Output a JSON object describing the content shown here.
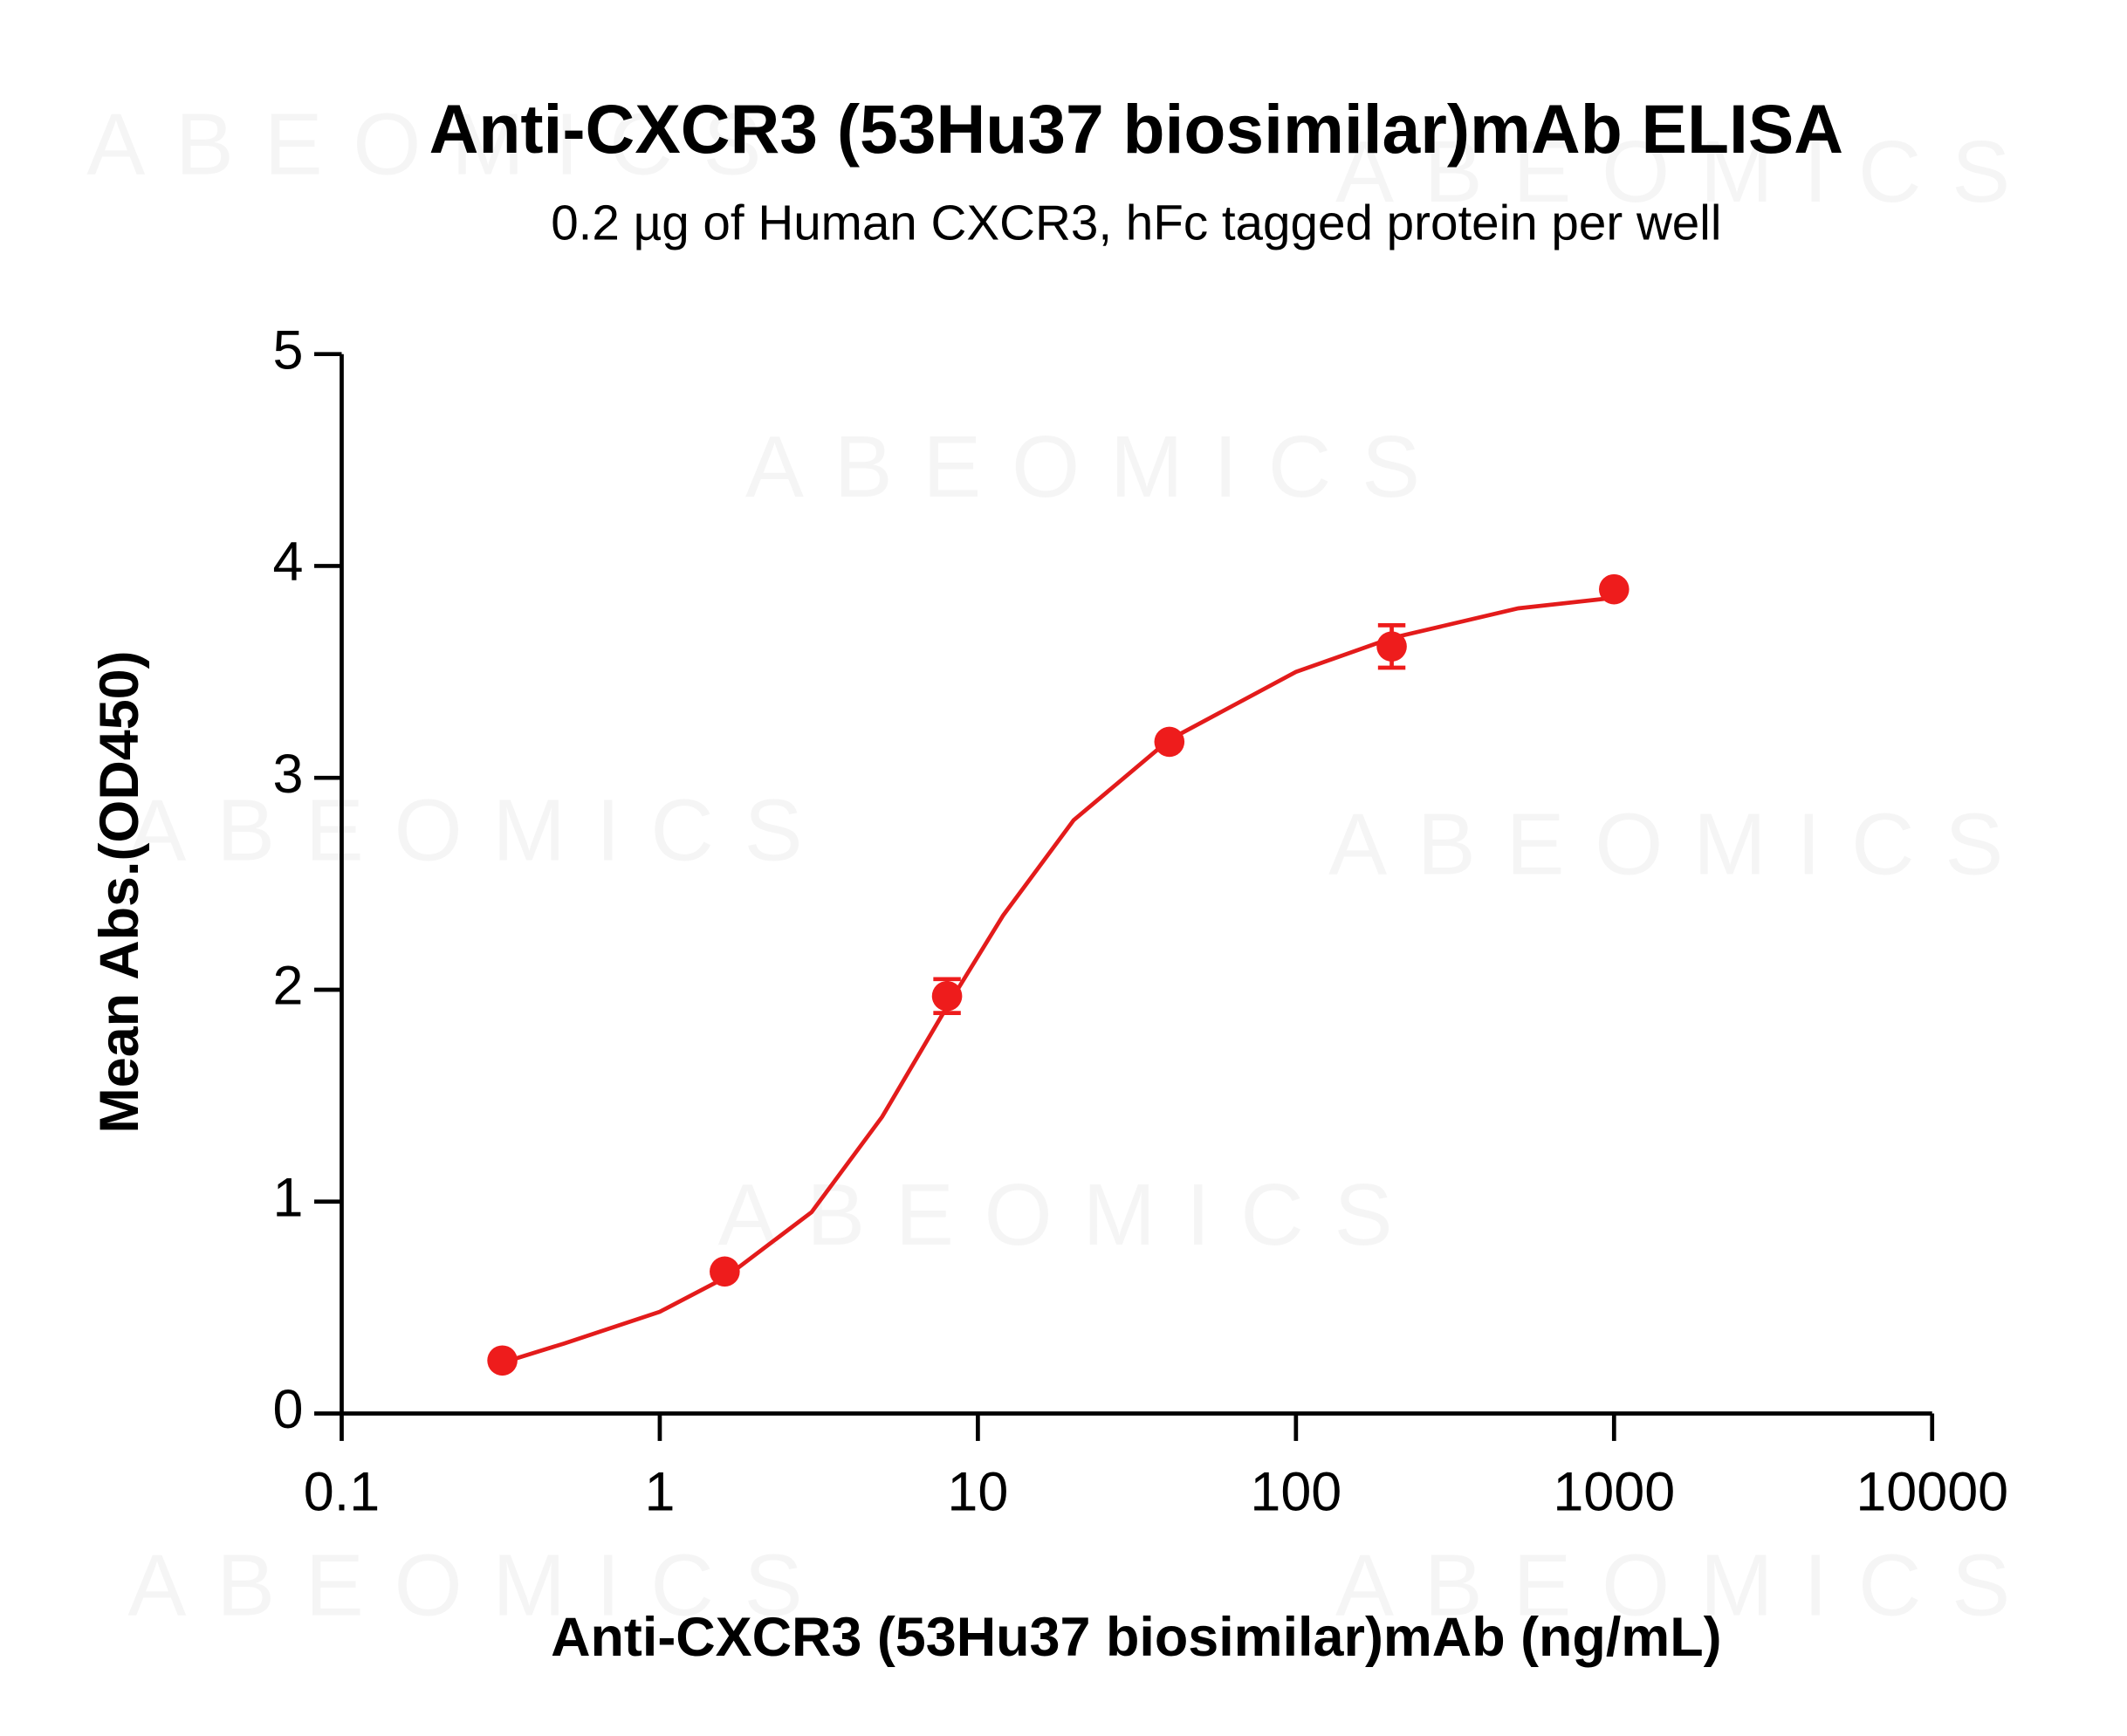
{
  "chart_data": {
    "type": "scatter",
    "title": "Anti-CXCR3 (53Hu37 biosimilar)mAb ELISA",
    "subtitle": "0.2 µg of Human CXCR3, hFc tagged protein per well",
    "xlabel": "Anti-CXCR3 (53Hu37 biosimilar)mAb (ng/mL)",
    "ylabel": "Mean Abs.(OD450)",
    "watermark": "ABEOMICS",
    "x": [
      0.32,
      1.6,
      8,
      40,
      200,
      1000
    ],
    "series": [
      {
        "color": "#ee1c1c",
        "values": [
          0.25,
          0.67,
          1.97,
          3.17,
          3.62,
          3.89
        ],
        "errors": [
          0.02,
          0.02,
          0.08,
          0.02,
          0.1,
          0.02
        ]
      }
    ],
    "fit": {
      "color": "#e31b1b",
      "x": [
        0.32,
        0.5,
        1,
        1.6,
        3,
        5,
        8,
        12,
        20,
        40,
        100,
        200,
        500,
        1000
      ],
      "values": [
        0.24,
        0.33,
        0.48,
        0.64,
        0.95,
        1.4,
        1.92,
        2.35,
        2.8,
        3.18,
        3.5,
        3.66,
        3.8,
        3.85
      ]
    },
    "xscale": "log",
    "xlim": [
      0.1,
      10000
    ],
    "ylim": [
      0,
      5
    ],
    "xticks": [
      0.1,
      1,
      10,
      100,
      1000,
      10000
    ],
    "yticks": [
      0,
      1,
      2,
      3,
      4,
      5
    ]
  }
}
